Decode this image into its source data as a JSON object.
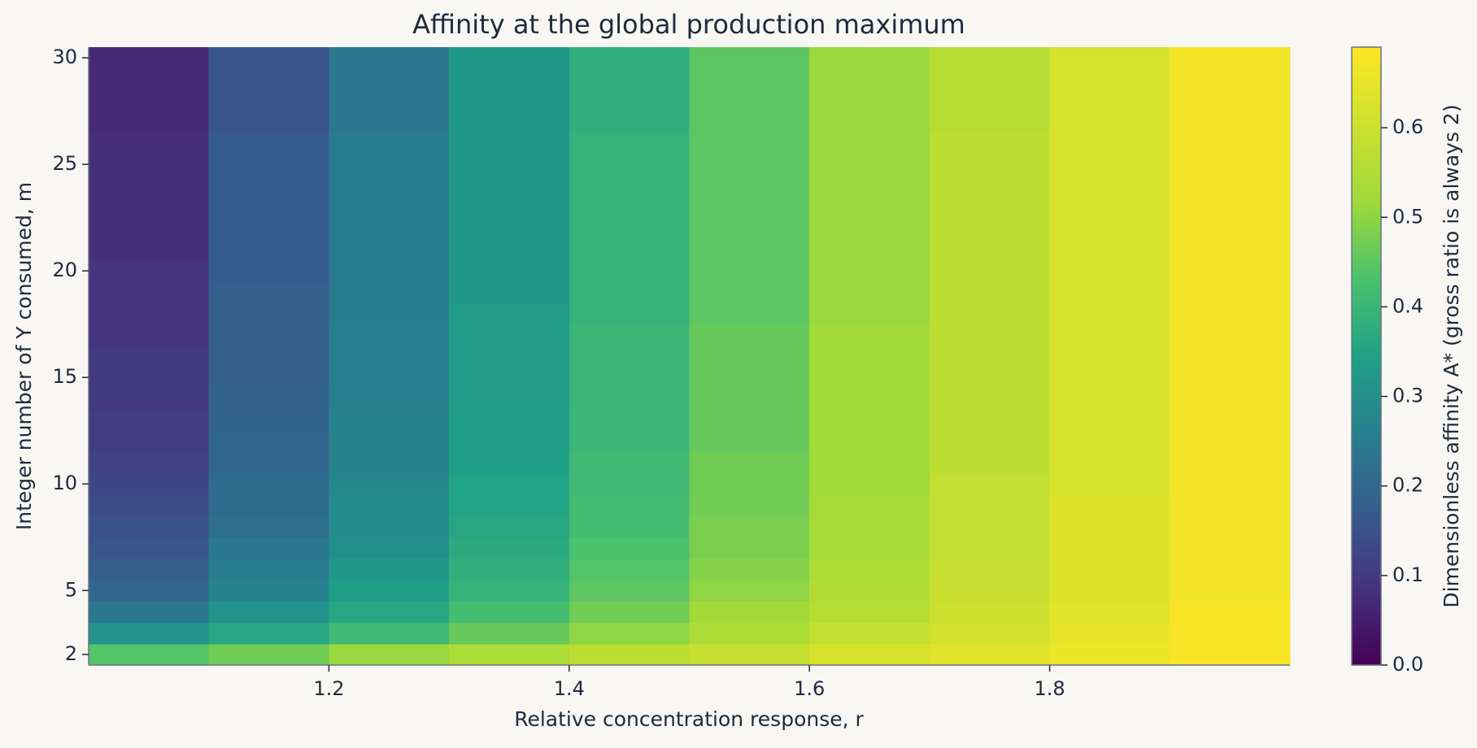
{
  "chart_data": {
    "type": "heatmap",
    "title": "Affinity at the global production maximum",
    "x_label": "Relative concentration response, r",
    "y_label": "Integer number of Y consumed, m",
    "colorbar_label": "Dimensionless affinity A* (gross ratio is always 2)",
    "colormap": "viridis",
    "x": [
      1.05,
      1.15,
      1.25,
      1.35,
      1.45,
      1.55,
      1.65,
      1.75,
      1.85,
      1.95
    ],
    "y": [
      2,
      3,
      4,
      5,
      6,
      7,
      8,
      9,
      10,
      11,
      12,
      13,
      14,
      15,
      16,
      17,
      18,
      19,
      20,
      21,
      22,
      23,
      24,
      25,
      26,
      27,
      28,
      29,
      30
    ],
    "values": [
      [
        0.44,
        0.47,
        0.51,
        0.54,
        0.57,
        0.59,
        0.62,
        0.64,
        0.66,
        0.68
      ],
      [
        0.31,
        0.36,
        0.41,
        0.46,
        0.5,
        0.54,
        0.58,
        0.61,
        0.65,
        0.68
      ],
      [
        0.24,
        0.31,
        0.36,
        0.42,
        0.47,
        0.52,
        0.56,
        0.6,
        0.64,
        0.68
      ],
      [
        0.2,
        0.27,
        0.34,
        0.39,
        0.45,
        0.5,
        0.55,
        0.59,
        0.63,
        0.67
      ],
      [
        0.18,
        0.25,
        0.32,
        0.38,
        0.44,
        0.49,
        0.54,
        0.59,
        0.63,
        0.67
      ],
      [
        0.16,
        0.24,
        0.3,
        0.37,
        0.43,
        0.48,
        0.53,
        0.58,
        0.63,
        0.67
      ],
      [
        0.15,
        0.22,
        0.29,
        0.36,
        0.42,
        0.48,
        0.53,
        0.58,
        0.63,
        0.67
      ],
      [
        0.14,
        0.21,
        0.29,
        0.35,
        0.42,
        0.47,
        0.53,
        0.58,
        0.63,
        0.67
      ],
      [
        0.13,
        0.21,
        0.28,
        0.35,
        0.41,
        0.47,
        0.52,
        0.58,
        0.62,
        0.67
      ],
      [
        0.12,
        0.2,
        0.27,
        0.34,
        0.41,
        0.47,
        0.52,
        0.57,
        0.62,
        0.67
      ],
      [
        0.11,
        0.2,
        0.27,
        0.34,
        0.4,
        0.46,
        0.52,
        0.57,
        0.62,
        0.67
      ],
      [
        0.11,
        0.19,
        0.27,
        0.34,
        0.4,
        0.46,
        0.52,
        0.57,
        0.62,
        0.67
      ],
      [
        0.1,
        0.19,
        0.26,
        0.33,
        0.4,
        0.46,
        0.52,
        0.57,
        0.62,
        0.67
      ],
      [
        0.1,
        0.18,
        0.26,
        0.33,
        0.4,
        0.46,
        0.52,
        0.57,
        0.62,
        0.67
      ],
      [
        0.1,
        0.18,
        0.26,
        0.33,
        0.4,
        0.46,
        0.52,
        0.57,
        0.62,
        0.67
      ],
      [
        0.09,
        0.18,
        0.26,
        0.33,
        0.4,
        0.46,
        0.52,
        0.57,
        0.62,
        0.67
      ],
      [
        0.09,
        0.18,
        0.25,
        0.33,
        0.39,
        0.45,
        0.51,
        0.57,
        0.62,
        0.67
      ],
      [
        0.09,
        0.18,
        0.25,
        0.32,
        0.39,
        0.45,
        0.51,
        0.57,
        0.62,
        0.67
      ],
      [
        0.09,
        0.17,
        0.25,
        0.32,
        0.39,
        0.45,
        0.51,
        0.57,
        0.62,
        0.67
      ],
      [
        0.08,
        0.17,
        0.25,
        0.32,
        0.39,
        0.45,
        0.51,
        0.57,
        0.62,
        0.67
      ],
      [
        0.08,
        0.17,
        0.25,
        0.32,
        0.39,
        0.45,
        0.51,
        0.57,
        0.62,
        0.67
      ],
      [
        0.08,
        0.17,
        0.25,
        0.32,
        0.39,
        0.45,
        0.51,
        0.57,
        0.62,
        0.67
      ],
      [
        0.08,
        0.17,
        0.25,
        0.32,
        0.39,
        0.45,
        0.51,
        0.57,
        0.62,
        0.67
      ],
      [
        0.08,
        0.17,
        0.25,
        0.32,
        0.39,
        0.45,
        0.51,
        0.57,
        0.62,
        0.67
      ],
      [
        0.08,
        0.17,
        0.25,
        0.32,
        0.39,
        0.45,
        0.51,
        0.57,
        0.62,
        0.67
      ],
      [
        0.07,
        0.16,
        0.24,
        0.32,
        0.38,
        0.45,
        0.51,
        0.56,
        0.62,
        0.67
      ],
      [
        0.07,
        0.16,
        0.24,
        0.32,
        0.38,
        0.45,
        0.51,
        0.56,
        0.62,
        0.67
      ],
      [
        0.07,
        0.16,
        0.24,
        0.32,
        0.38,
        0.45,
        0.51,
        0.56,
        0.62,
        0.67
      ],
      [
        0.07,
        0.16,
        0.24,
        0.32,
        0.38,
        0.45,
        0.51,
        0.56,
        0.62,
        0.67
      ]
    ],
    "xlim": [
      1.0,
      2.0
    ],
    "xticks": [
      1.2,
      1.4,
      1.6,
      1.8
    ],
    "ylim": [
      1.5,
      30.5
    ],
    "yticks": [
      2,
      5,
      10,
      15,
      20,
      25,
      30
    ],
    "clim": [
      0,
      0.69
    ],
    "cticks": [
      {
        "value": 0,
        "label": "0.0"
      },
      0.1,
      0.2,
      0.3,
      0.4,
      0.5,
      0.6
    ]
  }
}
